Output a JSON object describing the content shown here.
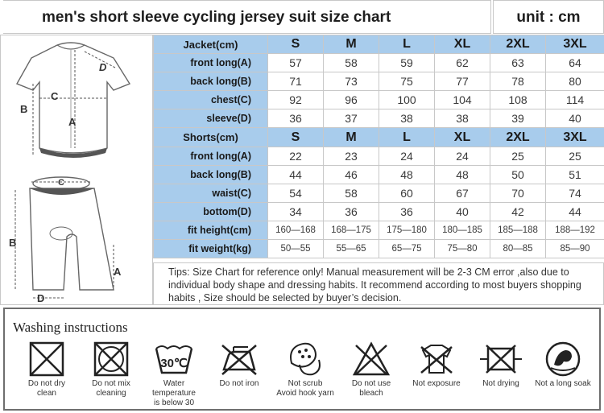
{
  "header": {
    "title": "men's  short sleeve cycling jersey suit size chart",
    "unit": "unit : cm"
  },
  "illustration": {
    "jersey_labels": [
      "D",
      "C",
      "B",
      "A"
    ],
    "shorts_labels": [
      "C",
      "B",
      "A",
      "D"
    ]
  },
  "sizes": [
    "S",
    "M",
    "L",
    "XL",
    "2XL",
    "3XL"
  ],
  "jacket": {
    "header": "Jacket(cm)",
    "rows": [
      {
        "label": "front long(A)",
        "values": [
          "57",
          "58",
          "59",
          "62",
          "63",
          "64"
        ]
      },
      {
        "label": "back long(B)",
        "values": [
          "71",
          "73",
          "75",
          "77",
          "78",
          "80"
        ]
      },
      {
        "label": "chest(C)",
        "values": [
          "92",
          "96",
          "100",
          "104",
          "108",
          "114"
        ]
      },
      {
        "label": "sleeve(D)",
        "values": [
          "36",
          "37",
          "38",
          "38",
          "39",
          "40"
        ]
      }
    ]
  },
  "shorts": {
    "header": "Shorts(cm)",
    "rows": [
      {
        "label": "front long(A)",
        "values": [
          "22",
          "23",
          "24",
          "24",
          "25",
          "25"
        ]
      },
      {
        "label": "back long(B)",
        "values": [
          "44",
          "46",
          "48",
          "48",
          "50",
          "51"
        ]
      },
      {
        "label": "waist(C)",
        "values": [
          "54",
          "58",
          "60",
          "67",
          "70",
          "74"
        ]
      },
      {
        "label": "bottom(D)",
        "values": [
          "34",
          "36",
          "36",
          "40",
          "42",
          "44"
        ]
      },
      {
        "label": "fit height(cm)",
        "values": [
          "160—168",
          "168—175",
          "175—180",
          "180—185",
          "185—188",
          "188—192"
        ]
      },
      {
        "label": "fit weight(kg)",
        "values": [
          "50—55",
          "55—65",
          "65—75",
          "75—80",
          "80—85",
          "85—90"
        ]
      }
    ]
  },
  "tips": "Tips: Size Chart for reference only! Manual measurement will be 2-3 CM error ,also due to individual body shape and dressing habits. It recommend according to most buyers shopping habits , Size should be selected by  buyer’s decision.",
  "washing": {
    "title": "Washing instructions",
    "temp_label": "30℃",
    "items": [
      {
        "icon": "no-dry-clean-icon",
        "caption": [
          "Do not dry",
          "clean"
        ]
      },
      {
        "icon": "do-not-mix-icon",
        "caption": [
          "Do not mix",
          "cleaning"
        ]
      },
      {
        "icon": "wash-30-icon",
        "caption": [
          "Water temperature",
          "is below 30"
        ]
      },
      {
        "icon": "do-not-iron-icon",
        "caption": [
          "Do not iron",
          ""
        ]
      },
      {
        "icon": "not-scrub-icon",
        "caption": [
          "Not scrub",
          "Avoid hook yarn"
        ]
      },
      {
        "icon": "no-bleach-icon",
        "caption": [
          "Do not use",
          "bleach"
        ]
      },
      {
        "icon": "not-exposure-icon",
        "caption": [
          "Not exposure",
          ""
        ]
      },
      {
        "icon": "not-drying-icon",
        "caption": [
          "Not drying",
          ""
        ]
      },
      {
        "icon": "no-long-soak-icon",
        "caption": [
          "Not a long soak",
          ""
        ]
      }
    ]
  }
}
